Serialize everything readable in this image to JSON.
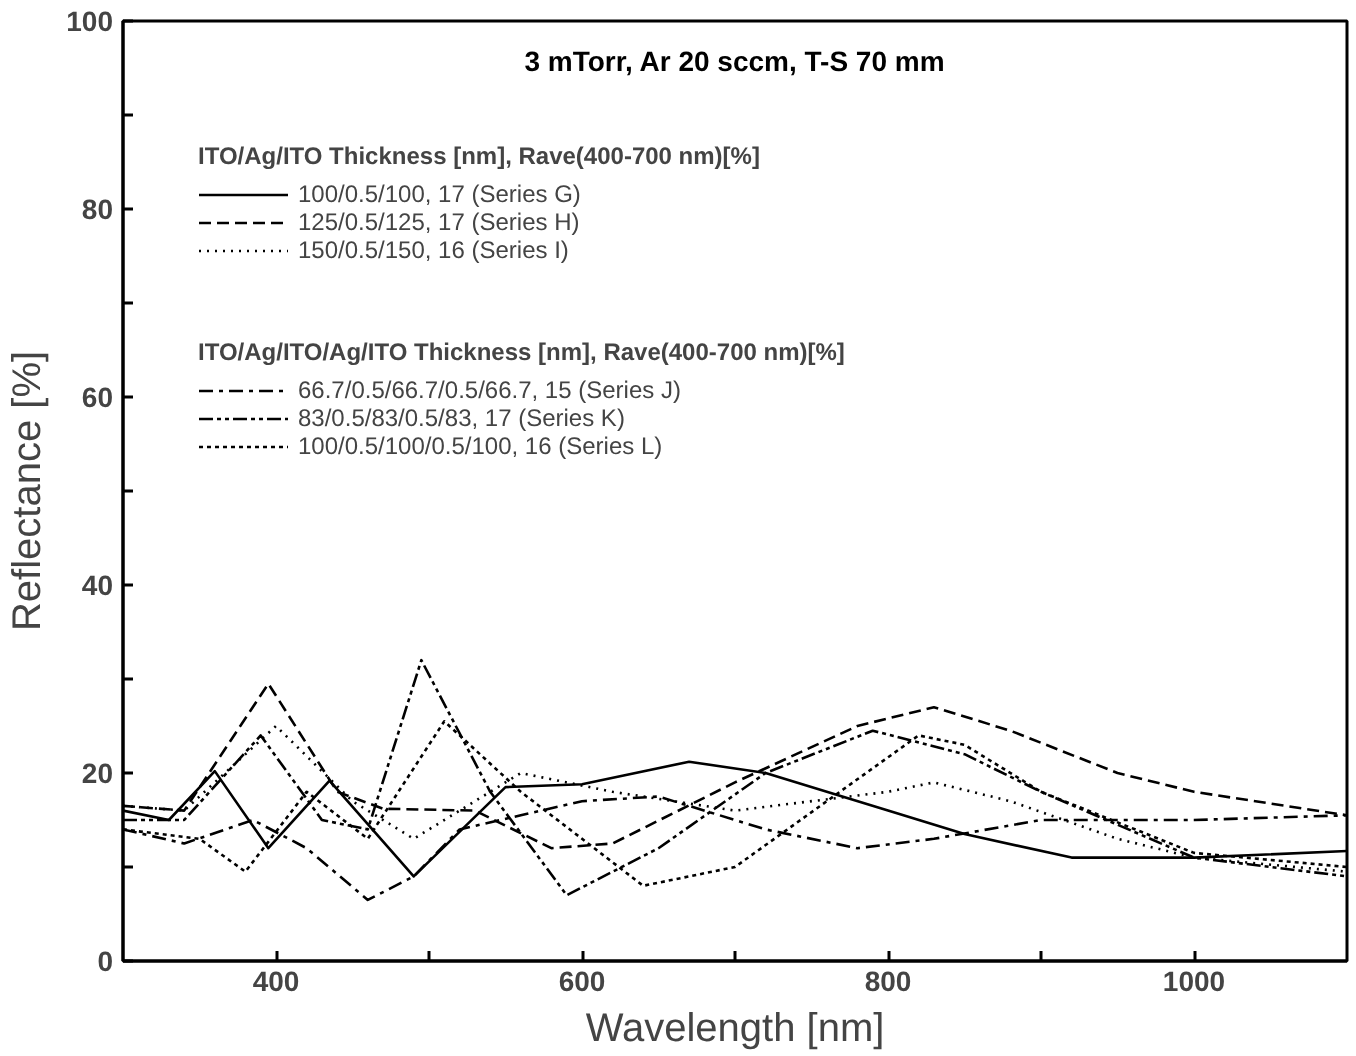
{
  "chart_data": {
    "type": "line",
    "title": "3 mTorr, Ar 20 sccm, T-S 70 mm",
    "xlabel": "Wavelength [nm]",
    "ylabel": "Reflectance [%]",
    "legend_title": "ITO/Ag/ITO Thickness [nm], Rave(400-700 nm)[%]",
    "annotations": [
      "ITO/Ag/ITO/Ag/ITO Thickness [nm], Rave(400-700 nm)[%]"
    ],
    "xlim": [
      300,
      1100
    ],
    "ylim": [
      0,
      100
    ],
    "xticks": [
      400,
      {
        "value": 500,
        "label": null
      },
      600,
      {
        "value": 700,
        "label": null
      },
      800,
      {
        "value": 900,
        "label": null
      },
      1000
    ],
    "yticks": [
      0,
      {
        "value": 10,
        "label": null
      },
      20,
      {
        "value": 30,
        "label": null
      },
      40,
      {
        "value": 50,
        "label": null
      },
      60,
      {
        "value": 70,
        "label": null
      },
      80,
      {
        "value": 90,
        "label": null
      },
      100
    ],
    "grid": false,
    "legend": "top left",
    "series": [
      {
        "name": "100/0.5/100, 17 (Series G)",
        "color": "#000000",
        "line_style": "solid",
        "x": [
          300,
          330,
          360,
          395,
          435,
          490,
          550,
          600,
          670,
          720,
          800,
          850,
          920,
          1000,
          1100
        ],
        "values": [
          16,
          15,
          20.2,
          12,
          19.2,
          9,
          18.5,
          18.8,
          21.2,
          20,
          16,
          13.5,
          11,
          11,
          11.7
        ]
      },
      {
        "name": "125/0.5/125, 17 (Series H)",
        "color": "#000000",
        "line_style": "dashed",
        "x": [
          300,
          340,
          395,
          440,
          470,
          530,
          580,
          620,
          700,
          780,
          830,
          880,
          950,
          1000,
          1100
        ],
        "values": [
          16.5,
          16,
          29.5,
          18,
          16.2,
          16,
          12,
          12.5,
          19,
          25,
          27,
          24.5,
          20,
          18,
          15.5
        ]
      },
      {
        "name": "150/0.5/150, 16 (Series I)",
        "color": "#000000",
        "line_style": "dotted",
        "x": [
          300,
          340,
          400,
          450,
          490,
          560,
          620,
          700,
          800,
          830,
          880,
          950,
          1000,
          1100
        ],
        "values": [
          16.5,
          16,
          25,
          17,
          13,
          20,
          18,
          16,
          18,
          19,
          17,
          13,
          11,
          9.5
        ]
      },
      {
        "name": "66.7/0.5/66.7/0.5/66.7, 15 (Series J)",
        "color": "#000000",
        "line_style": "dashdot",
        "x": [
          300,
          340,
          385,
          420,
          460,
          490,
          520,
          560,
          600,
          650,
          720,
          780,
          830,
          900,
          1000,
          1100
        ],
        "values": [
          14,
          12.5,
          15,
          12,
          6.5,
          9,
          14,
          15.5,
          17,
          17.5,
          14,
          12,
          13,
          15,
          15,
          15.5
        ]
      },
      {
        "name": "83/0.5/83/0.5/83, 17 (Series K)",
        "color": "#000000",
        "line_style": "dashdotdot",
        "x": [
          300,
          340,
          390,
          430,
          460,
          495,
          540,
          590,
          650,
          720,
          790,
          850,
          900,
          1000,
          1100
        ],
        "values": [
          15,
          15,
          24,
          15,
          14,
          32,
          18,
          7,
          12,
          20,
          24.5,
          22,
          18,
          11,
          9
        ]
      },
      {
        "name": "100/0.5/100/0.5/100, 16 (Series L)",
        "color": "#000000",
        "line_style": "shortdash",
        "x": [
          300,
          350,
          380,
          420,
          460,
          510,
          560,
          640,
          700,
          760,
          820,
          850,
          900,
          1000,
          1100
        ],
        "values": [
          14,
          13,
          9.5,
          18,
          13,
          25.5,
          18,
          8,
          10,
          17,
          24,
          23,
          18,
          11.5,
          10
        ]
      }
    ]
  }
}
